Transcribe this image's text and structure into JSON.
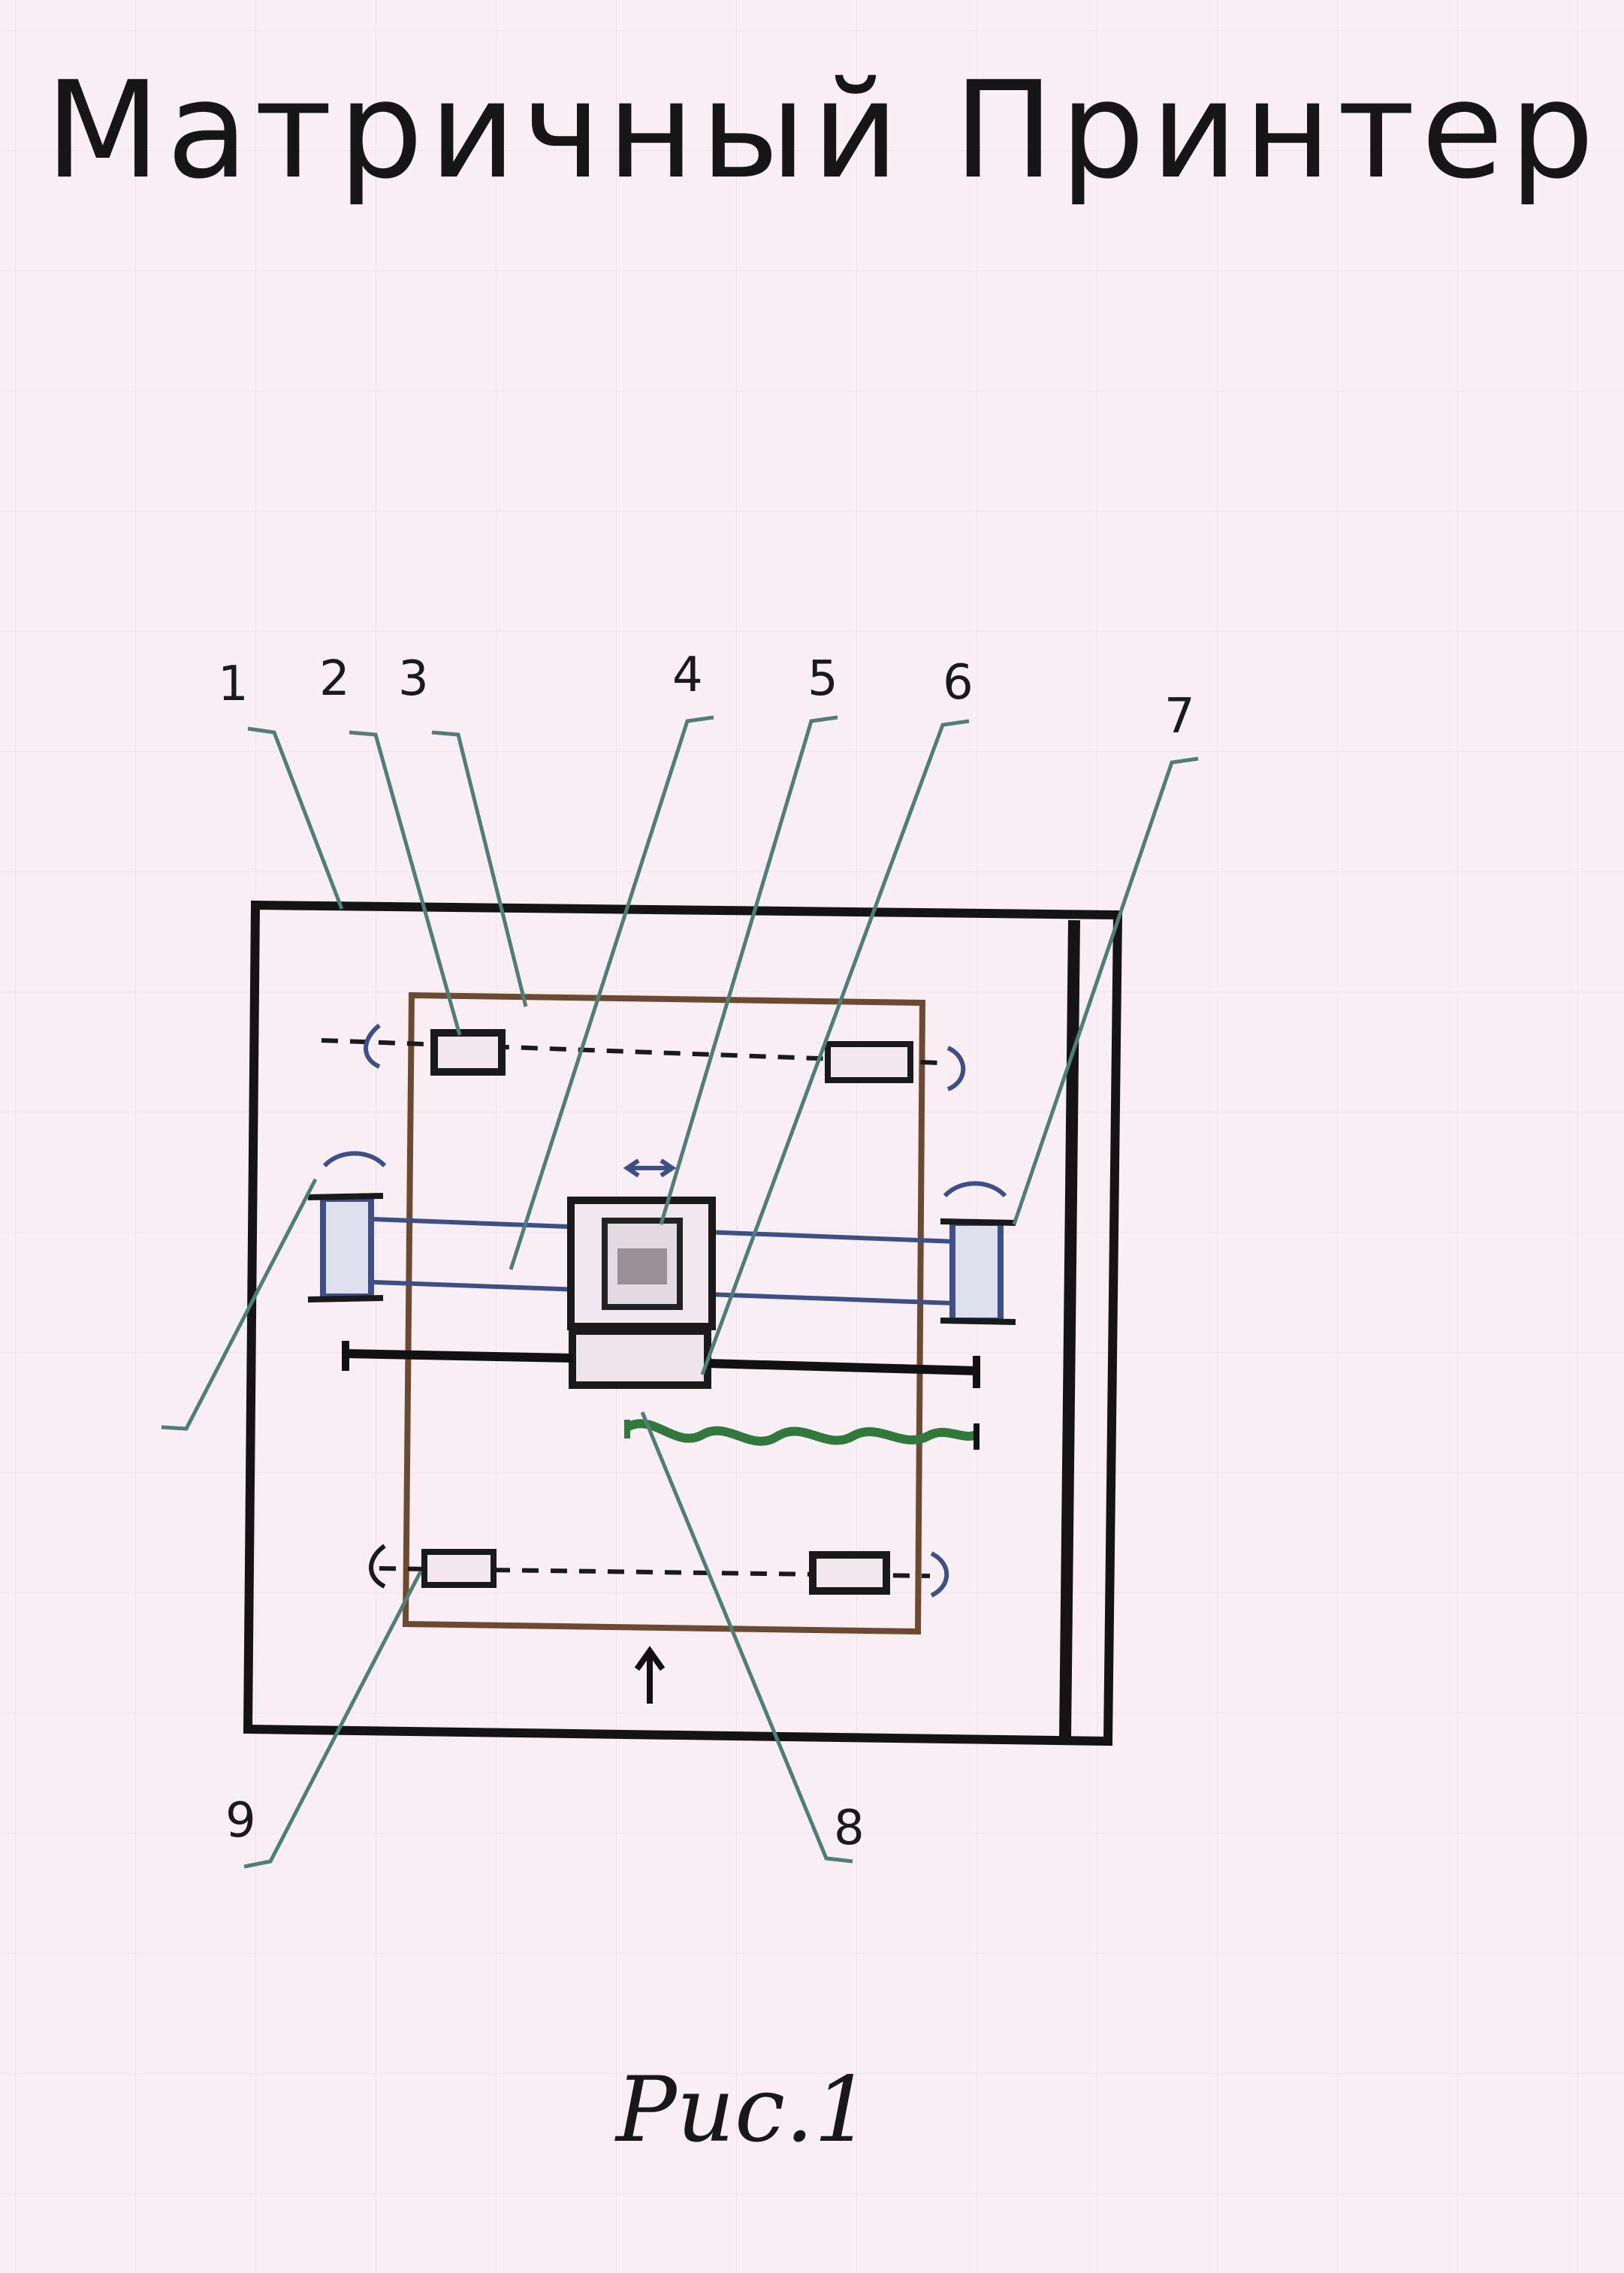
{
  "page": {
    "title": "Матричный Принтер",
    "caption": "Рис.1"
  },
  "diagram": {
    "callouts": [
      "1",
      "2",
      "3",
      "4",
      "5",
      "6",
      "7",
      "8",
      "9"
    ]
  },
  "colors": {
    "paper": "#f8eef4",
    "ink": "#161616",
    "frame_brown": "#6b4a30",
    "leader_teal": "#4e7f74",
    "rail_blue": "#3c4f86",
    "ribbon_green": "#2f7a3a"
  }
}
